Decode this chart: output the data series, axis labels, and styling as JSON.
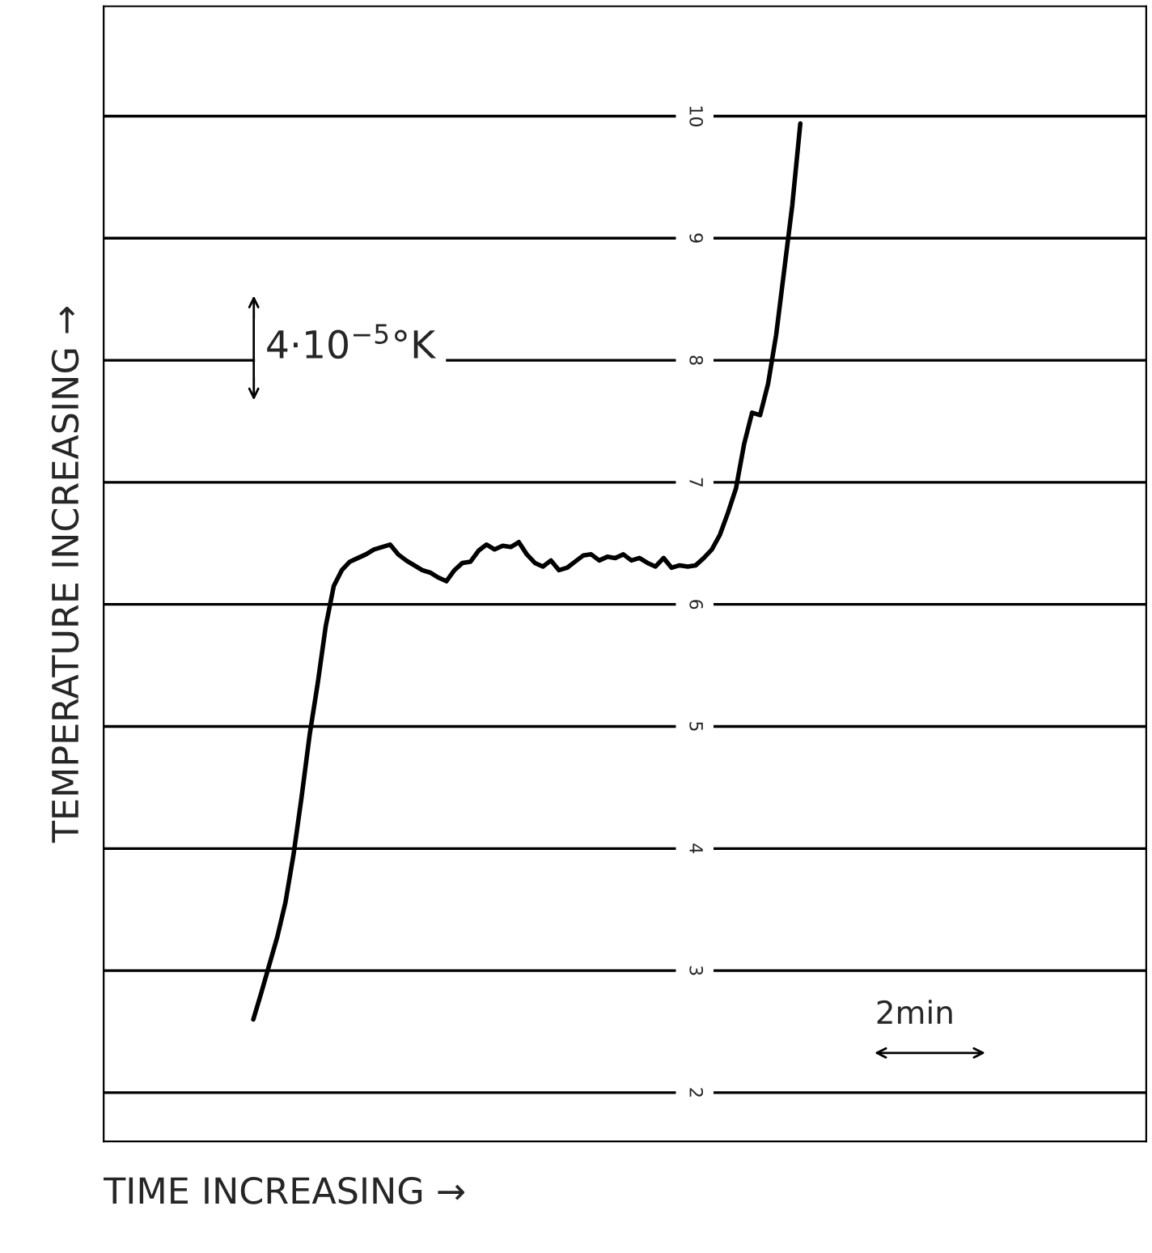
{
  "chart_data": {
    "type": "line",
    "xlabel": "TIME INCREASING →",
    "ylabel": "TEMPERATURE INCREASING →",
    "annotations": [
      "4·10$^{−5}$°K",
      "2min"
    ],
    "categories": [
      null,
      null,
      null,
      null,
      null,
      null,
      null,
      null,
      null,
      null,
      null,
      null,
      null,
      null,
      null,
      null,
      null,
      null,
      null,
      null,
      null,
      null,
      null,
      null,
      null,
      null,
      null,
      null,
      null,
      null,
      null,
      null,
      null,
      null,
      null,
      null,
      null,
      null,
      null,
      null,
      null,
      null,
      null,
      null,
      null,
      null,
      null,
      null,
      null,
      null,
      null,
      null,
      null,
      null,
      null,
      null,
      null,
      null,
      null,
      null,
      null,
      null,
      null,
      null,
      null,
      null,
      null,
      null,
      null
    ],
    "series": [
      {
        "color": "#000000",
        "values": [
          2.6,
          2.82,
          3.05,
          3.28,
          3.56,
          3.95,
          4.42,
          4.93,
          5.35,
          5.82,
          6.15,
          6.28,
          6.35,
          6.38,
          6.41,
          6.45,
          6.47,
          6.49,
          6.41,
          6.36,
          6.32,
          6.28,
          6.26,
          6.22,
          6.19,
          6.28,
          6.34,
          6.35,
          6.44,
          6.49,
          6.45,
          6.48,
          6.47,
          6.51,
          6.41,
          6.34,
          6.31,
          6.36,
          6.28,
          6.3,
          6.35,
          6.4,
          6.41,
          6.36,
          6.39,
          6.38,
          6.41,
          6.36,
          6.38,
          6.34,
          6.31,
          6.38,
          6.3,
          6.32,
          6.31,
          6.32,
          6.38,
          6.45,
          6.57,
          6.75,
          6.95,
          7.31,
          7.57,
          7.55,
          7.81,
          8.21,
          8.74,
          9.27,
          9.94
        ]
      }
    ],
    "ylim": [
      1.6,
      10.9
    ],
    "yticks": [
      2,
      3,
      4,
      5,
      6,
      7,
      8,
      9,
      10
    ],
    "grid": "y",
    "marker": "none",
    "line_style": "solid"
  }
}
